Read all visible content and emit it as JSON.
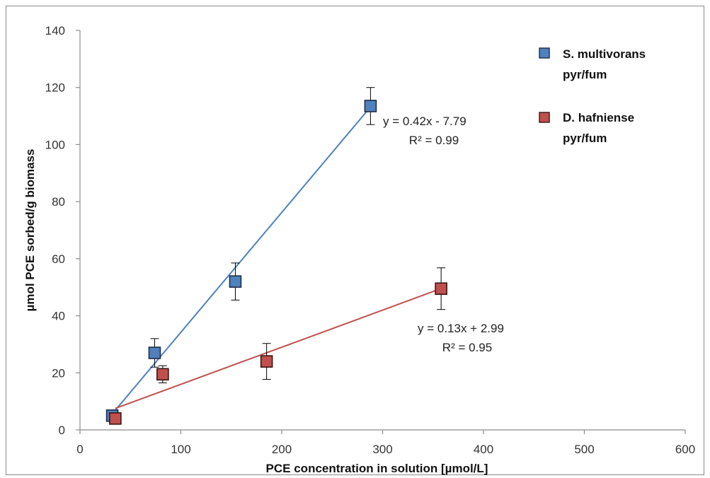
{
  "chart_data": {
    "type": "scatter",
    "xlabel": "PCE concentration in solution [µmol/L]",
    "ylabel": "µmol PCE sorbed/g biomass",
    "xlim": [
      0,
      600
    ],
    "ylim": [
      0,
      140
    ],
    "xticks": [
      0,
      100,
      200,
      300,
      400,
      500,
      600
    ],
    "yticks": [
      0,
      20,
      40,
      60,
      80,
      100,
      120,
      140
    ],
    "xtick_labels": [
      "0",
      "100",
      "200",
      "300",
      "400",
      "500",
      "600"
    ],
    "ytick_labels": [
      "0",
      "20",
      "40",
      "60",
      "80",
      "100",
      "120",
      "140"
    ],
    "grid": false,
    "legend_position": "top-right",
    "series": [
      {
        "name_line1": "S. multivorans",
        "name_line2": "pyr/fum",
        "color": "#4f81bd",
        "points": [
          {
            "x": 32,
            "y": 5,
            "err": 1
          },
          {
            "x": 74,
            "y": 27,
            "err": 5
          },
          {
            "x": 154,
            "y": 52,
            "err": 6.5
          },
          {
            "x": 288,
            "y": 113.5,
            "err": 6.5
          }
        ],
        "trendline": {
          "slope": 0.42,
          "intercept": -7.79,
          "x_range": [
            32,
            288
          ]
        },
        "equation": "y = 0.42x - 7.79",
        "r2": "R² = 0.99"
      },
      {
        "name_line1": "D. hafniense",
        "name_line2": "pyr/fum",
        "color": "#c0504d",
        "points": [
          {
            "x": 35,
            "y": 4,
            "err": 1
          },
          {
            "x": 82,
            "y": 19.5,
            "err": 3
          },
          {
            "x": 185,
            "y": 24,
            "err": 6.3
          },
          {
            "x": 358,
            "y": 49.5,
            "err": 7.3
          }
        ],
        "trendline": {
          "slope": 0.13,
          "intercept": 2.99,
          "x_range": [
            35,
            358
          ]
        },
        "equation": "y = 0.13x + 2.99",
        "r2": "R² = 0.95"
      }
    ]
  }
}
